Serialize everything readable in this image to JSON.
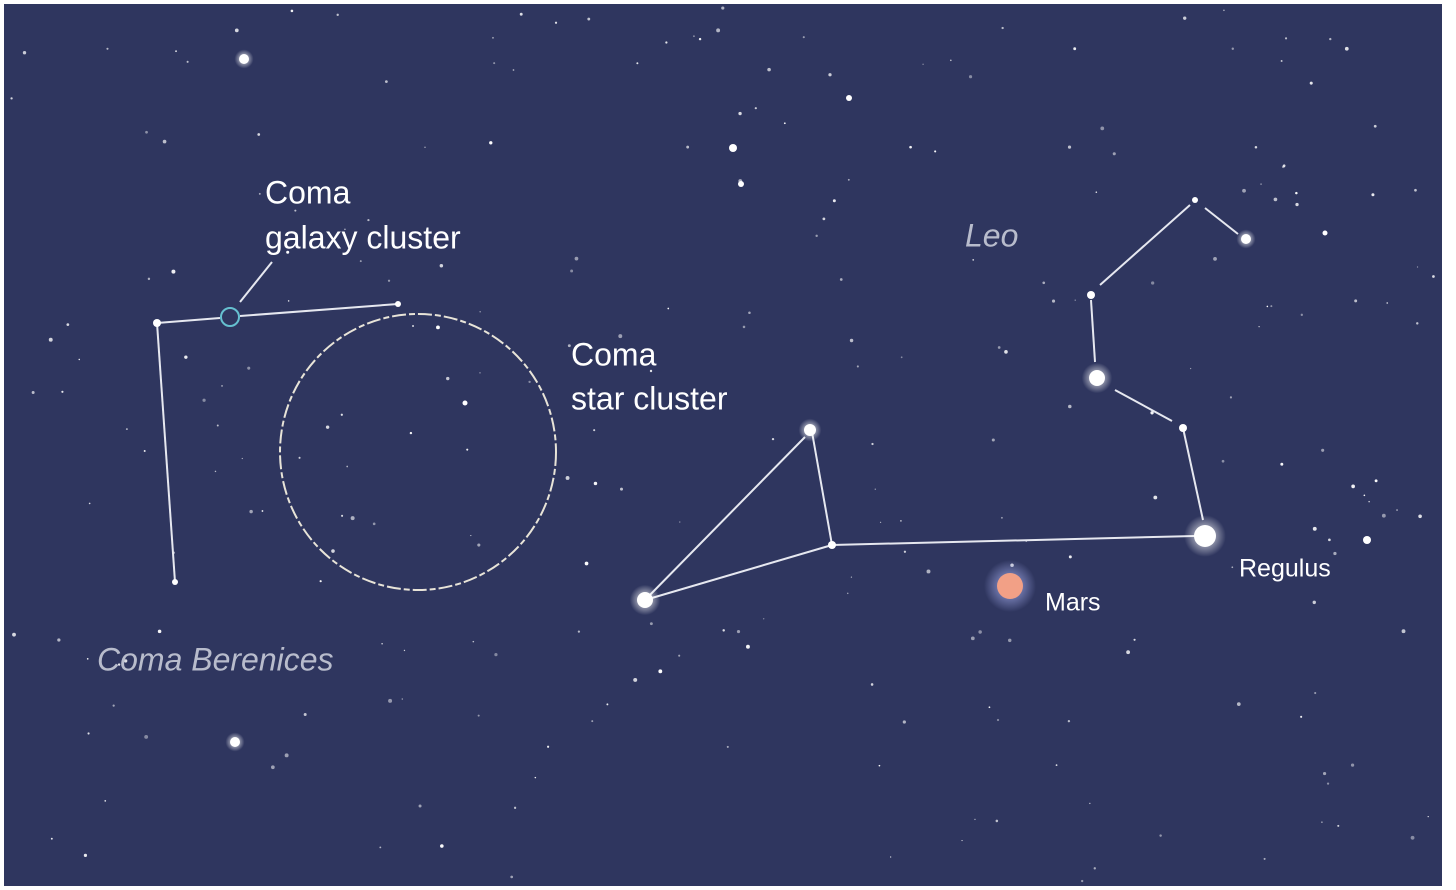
{
  "labels": {
    "galaxy_cluster": [
      "Coma",
      "galaxy cluster"
    ],
    "star_cluster": [
      "Coma",
      "star cluster"
    ],
    "leo": "Leo",
    "coma_berenices": "Coma Berenices",
    "mars": "Mars",
    "regulus": "Regulus"
  }
}
